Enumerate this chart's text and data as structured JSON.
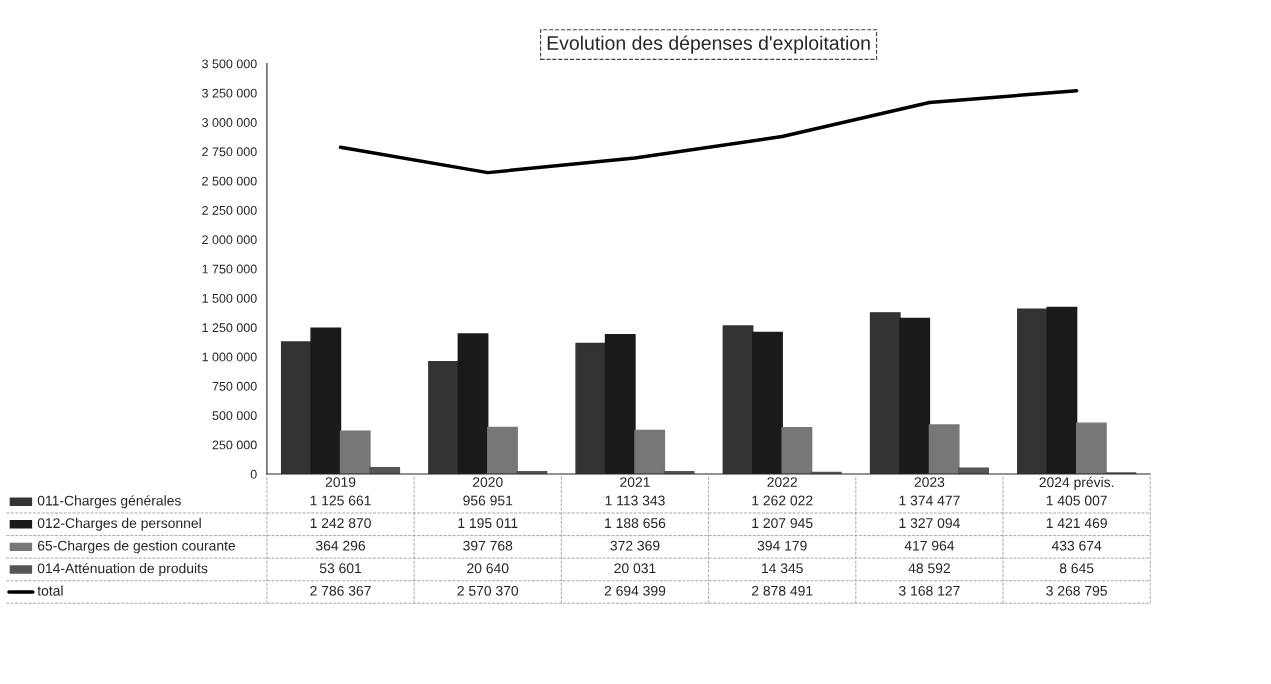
{
  "chart_data": {
    "type": "bar",
    "title": "Evolution des dépenses d'exploitation",
    "categories": [
      "2019",
      "2020",
      "2021",
      "2022",
      "2023",
      "2024 prévis."
    ],
    "series": [
      {
        "name": "011-Charges générales",
        "color": "#333333",
        "values": [
          1125661,
          956951,
          1113343,
          1262022,
          1374477,
          1405007
        ]
      },
      {
        "name": "012-Charges de personnel",
        "color": "#1a1a1a",
        "values": [
          1242870,
          1195011,
          1188656,
          1207945,
          1327094,
          1421469
        ]
      },
      {
        "name": "65-Charges de gestion courante",
        "color": "#777777",
        "values": [
          364296,
          397768,
          372369,
          394179,
          417964,
          433674
        ]
      },
      {
        "name": "014-Atténuation de produits",
        "color": "#555555",
        "values": [
          53601,
          20640,
          20031,
          14345,
          48592,
          8645
        ]
      },
      {
        "name": "total",
        "type": "line",
        "color": "#000000",
        "values": [
          2786367,
          2570370,
          2694399,
          2878491,
          3168127,
          3268795
        ]
      }
    ],
    "ylim": [
      0,
      3500000
    ],
    "yticks": [
      {
        "value": 0,
        "label": "0"
      },
      {
        "value": 250000,
        "label": "250 000"
      },
      {
        "value": 500000,
        "label": "500 000"
      },
      {
        "value": 750000,
        "label": "750 000"
      },
      {
        "value": 1000000,
        "label": "1 000 000"
      },
      {
        "value": 1250000,
        "label": "1 250 000"
      },
      {
        "value": 1500000,
        "label": "1 500 000"
      },
      {
        "value": 1750000,
        "label": "1 750 000"
      },
      {
        "value": 2000000,
        "label": "2 000 000"
      },
      {
        "value": 2250000,
        "label": "2 250 000"
      },
      {
        "value": 2500000,
        "label": "2 500 000"
      },
      {
        "value": 2750000,
        "label": "2 750 000"
      },
      {
        "value": 3000000,
        "label": "3 000 000"
      },
      {
        "value": 3250000,
        "label": "3 250 000"
      },
      {
        "value": 3500000,
        "label": "3 500 000"
      }
    ],
    "data_labels": true,
    "legend": "bottom"
  }
}
